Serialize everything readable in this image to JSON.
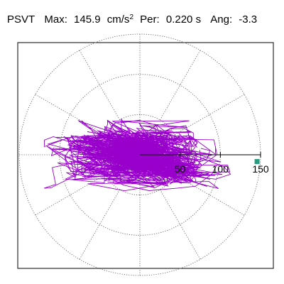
{
  "header": {
    "label": "PSVT",
    "max_label": "Max:",
    "max_value": "145.9",
    "max_unit": "cm/s",
    "max_unit_exp": "2",
    "per_label": "Per:",
    "per_value": "0.220 s",
    "ang_label": "Ang:",
    "ang_value": "-3.3"
  },
  "chart_data": {
    "type": "scatter",
    "radial_ticks": [
      "50",
      "100",
      "150"
    ],
    "radial_max": 150,
    "spoke_angles_deg": [
      0,
      30,
      60,
      90,
      120,
      150,
      180,
      210,
      240,
      270,
      300,
      330
    ],
    "max_point": {
      "radius": 145.9,
      "angle_deg": -3.3
    },
    "grid": true,
    "trace_color": "#9900cc",
    "marker_color": "#2a9d80"
  }
}
